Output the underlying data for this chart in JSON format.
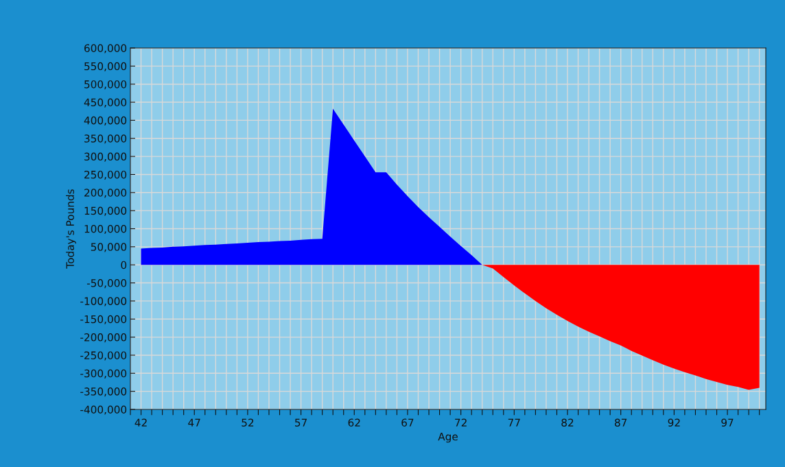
{
  "chart_data": {
    "type": "area",
    "xlabel": "Age",
    "ylabel": "Today's Pounds",
    "x": [
      42,
      43,
      44,
      45,
      46,
      47,
      48,
      49,
      50,
      51,
      52,
      53,
      54,
      55,
      56,
      57,
      58,
      59,
      60,
      61,
      62,
      63,
      64,
      65,
      66,
      67,
      68,
      69,
      70,
      71,
      72,
      73,
      74,
      75,
      76,
      77,
      78,
      79,
      80,
      81,
      82,
      83,
      84,
      85,
      86,
      87,
      88,
      89,
      90,
      91,
      92,
      93,
      94,
      95,
      96,
      97,
      98,
      99,
      100
    ],
    "series": [
      {
        "color": "#0000ff",
        "values": [
          45000,
          47000,
          48000,
          50000,
          51000,
          53000,
          55000,
          56000,
          58000,
          59000,
          61000,
          63000,
          64000,
          66000,
          67000,
          69000,
          71000,
          72000,
          432000,
          388000,
          344000,
          300000,
          256000,
          256000,
          222000,
          190000,
          160000,
          132000,
          105000,
          78000,
          52000,
          27000,
          0,
          null,
          null,
          null,
          null,
          null,
          null,
          null,
          null,
          null,
          null,
          null,
          null,
          null,
          null,
          null,
          null,
          null,
          null,
          null,
          null,
          null,
          null,
          null,
          null,
          null,
          null
        ]
      },
      {
        "color": "#ff0000",
        "values": [
          null,
          null,
          null,
          null,
          null,
          null,
          null,
          null,
          null,
          null,
          null,
          null,
          null,
          null,
          null,
          null,
          null,
          null,
          null,
          null,
          null,
          null,
          null,
          null,
          null,
          null,
          null,
          null,
          null,
          null,
          null,
          null,
          0,
          -10000,
          -34000,
          -57000,
          -79000,
          -100000,
          -120000,
          -138000,
          -155000,
          -171000,
          -185000,
          -198000,
          -211000,
          -223000,
          -238000,
          -251000,
          -264000,
          -276000,
          -287000,
          -297000,
          -306000,
          -316000,
          -324000,
          -332000,
          -338000,
          -346000,
          -340000
        ]
      }
    ],
    "xlim": [
      41,
      100.6
    ],
    "xticks": [
      {
        "value": 41,
        "label": null
      },
      {
        "value": 42,
        "label": "42"
      },
      {
        "value": 43,
        "label": null
      },
      {
        "value": 44,
        "label": null
      },
      {
        "value": 45,
        "label": null
      },
      {
        "value": 46,
        "label": null
      },
      {
        "value": 47,
        "label": "47"
      },
      {
        "value": 48,
        "label": null
      },
      {
        "value": 49,
        "label": null
      },
      {
        "value": 50,
        "label": null
      },
      {
        "value": 51,
        "label": null
      },
      {
        "value": 52,
        "label": "52"
      },
      {
        "value": 53,
        "label": null
      },
      {
        "value": 54,
        "label": null
      },
      {
        "value": 55,
        "label": null
      },
      {
        "value": 56,
        "label": null
      },
      {
        "value": 57,
        "label": "57"
      },
      {
        "value": 58,
        "label": null
      },
      {
        "value": 59,
        "label": null
      },
      {
        "value": 60,
        "label": null
      },
      {
        "value": 61,
        "label": null
      },
      {
        "value": 62,
        "label": "62"
      },
      {
        "value": 63,
        "label": null
      },
      {
        "value": 64,
        "label": null
      },
      {
        "value": 65,
        "label": null
      },
      {
        "value": 66,
        "label": null
      },
      {
        "value": 67,
        "label": "67"
      },
      {
        "value": 68,
        "label": null
      },
      {
        "value": 69,
        "label": null
      },
      {
        "value": 70,
        "label": null
      },
      {
        "value": 71,
        "label": null
      },
      {
        "value": 72,
        "label": "72"
      },
      {
        "value": 73,
        "label": null
      },
      {
        "value": 74,
        "label": null
      },
      {
        "value": 75,
        "label": null
      },
      {
        "value": 76,
        "label": null
      },
      {
        "value": 77,
        "label": "77"
      },
      {
        "value": 78,
        "label": null
      },
      {
        "value": 79,
        "label": null
      },
      {
        "value": 80,
        "label": null
      },
      {
        "value": 81,
        "label": null
      },
      {
        "value": 82,
        "label": "82"
      },
      {
        "value": 83,
        "label": null
      },
      {
        "value": 84,
        "label": null
      },
      {
        "value": 85,
        "label": null
      },
      {
        "value": 86,
        "label": null
      },
      {
        "value": 87,
        "label": "87"
      },
      {
        "value": 88,
        "label": null
      },
      {
        "value": 89,
        "label": null
      },
      {
        "value": 90,
        "label": null
      },
      {
        "value": 91,
        "label": null
      },
      {
        "value": 92,
        "label": "92"
      },
      {
        "value": 93,
        "label": null
      },
      {
        "value": 94,
        "label": null
      },
      {
        "value": 95,
        "label": null
      },
      {
        "value": 96,
        "label": null
      },
      {
        "value": 97,
        "label": "97"
      },
      {
        "value": 98,
        "label": null
      },
      {
        "value": 99,
        "label": null
      },
      {
        "value": 100,
        "label": null
      }
    ],
    "ylim": [
      -400000,
      600000
    ],
    "yticks": [
      {
        "value": -400000,
        "label": "-400,000"
      },
      {
        "value": -350000,
        "label": "-350,000"
      },
      {
        "value": -300000,
        "label": "-300,000"
      },
      {
        "value": -250000,
        "label": "-250,000"
      },
      {
        "value": -200000,
        "label": "-200,000"
      },
      {
        "value": -150000,
        "label": "-150,000"
      },
      {
        "value": -100000,
        "label": "-100,000"
      },
      {
        "value": -50000,
        "label": "-50,000"
      },
      {
        "value": 0,
        "label": "0"
      },
      {
        "value": 50000,
        "label": "50,000"
      },
      {
        "value": 100000,
        "label": "100,000"
      },
      {
        "value": 150000,
        "label": "150,000"
      },
      {
        "value": 200000,
        "label": "200,000"
      },
      {
        "value": 250000,
        "label": "250,000"
      },
      {
        "value": 300000,
        "label": "300,000"
      },
      {
        "value": 350000,
        "label": "350,000"
      },
      {
        "value": 400000,
        "label": "400,000"
      },
      {
        "value": 450000,
        "label": "450,000"
      },
      {
        "value": 500000,
        "label": "500,000"
      },
      {
        "value": 550000,
        "label": "550,000"
      },
      {
        "value": 600000,
        "label": "600,000"
      }
    ],
    "grid": true,
    "legend": false
  }
}
